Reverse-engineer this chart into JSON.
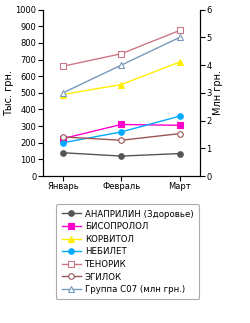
{
  "x_labels": [
    "Январь",
    "Февраль",
    "Март"
  ],
  "x": [
    0,
    1,
    2
  ],
  "series": [
    {
      "name": "АНАПРИЛИН (Здоровье)",
      "values": [
        140,
        120,
        135
      ],
      "color": "#555555",
      "marker": "o",
      "marker_fill": "#555555",
      "markersize": 4,
      "linewidth": 1.0,
      "use_right_axis": false
    },
    {
      "name": "БИСОПРОЛОЛ",
      "values": [
        225,
        310,
        305
      ],
      "color": "#ff00cc",
      "marker": "s",
      "marker_fill": "#ff00cc",
      "markersize": 4,
      "linewidth": 1.0,
      "use_right_axis": false
    },
    {
      "name": "КОРВИТОЛ",
      "values": [
        490,
        550,
        685
      ],
      "color": "#ffee00",
      "marker": "^",
      "marker_fill": "#ffee00",
      "markersize": 5,
      "linewidth": 1.0,
      "use_right_axis": false
    },
    {
      "name": "НЕБИЛЕТ",
      "values": [
        200,
        265,
        360
      ],
      "color": "#00aaff",
      "marker": "o",
      "marker_fill": "#00aaff",
      "markersize": 4,
      "linewidth": 1.0,
      "use_right_axis": false
    },
    {
      "name": "ТЕНОРИК",
      "values": [
        660,
        735,
        875
      ],
      "color": "#cc7788",
      "marker": "s",
      "marker_fill": "white",
      "markersize": 5,
      "linewidth": 1.0,
      "use_right_axis": false
    },
    {
      "name": "ЭГИЛОК",
      "values": [
        235,
        215,
        255
      ],
      "color": "#995555",
      "marker": "o",
      "marker_fill": "white",
      "markersize": 4,
      "linewidth": 1.0,
      "use_right_axis": false
    },
    {
      "name": "Группа С07 (млн грн.)",
      "values": [
        3.0,
        4.0,
        5.0
      ],
      "color": "#7799bb",
      "marker": "^",
      "marker_fill": "white",
      "markersize": 5,
      "linewidth": 1.0,
      "use_right_axis": true
    }
  ],
  "ylabel_left": "Тыс. грн.",
  "ylabel_right": "Млн грн.",
  "ylim_left": [
    0,
    1000
  ],
  "ylim_right": [
    0,
    6
  ],
  "yticks_left": [
    0,
    100,
    200,
    300,
    400,
    500,
    600,
    700,
    800,
    900,
    1000
  ],
  "yticks_right": [
    0,
    1,
    2,
    3,
    4,
    5,
    6
  ],
  "background_color": "#ffffff",
  "legend_fontsize": 6.2,
  "axis_fontsize": 7.0,
  "tick_fontsize": 6.0
}
